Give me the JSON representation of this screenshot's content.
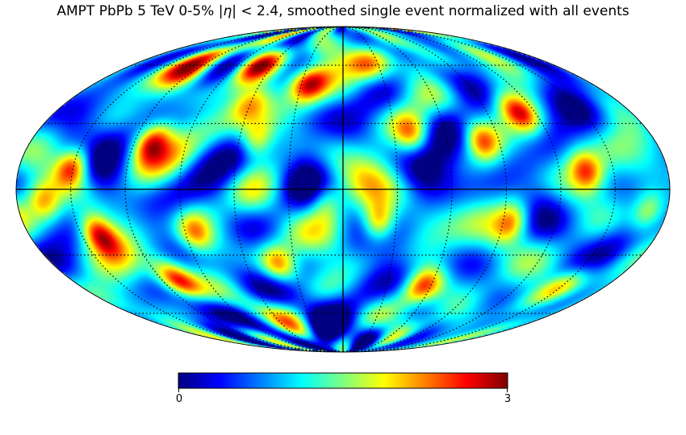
{
  "title": {
    "prefix": "AMPT PbPb 5 TeV 0-5% |",
    "symbol": "η",
    "suffix": "| < 2.4, smoothed single event normalized with all events"
  },
  "colorbar": {
    "min_label": "0",
    "max_label": "3",
    "colormap": "jet",
    "colors": [
      "#00007f",
      "#0000ff",
      "#007fff",
      "#00ffff",
      "#7fff7f",
      "#ffff00",
      "#ff7f00",
      "#ff0000",
      "#7f0000"
    ]
  },
  "chart_data": {
    "type": "heatmap",
    "projection": "mollweide",
    "value_range": [
      0,
      3
    ],
    "graticule": {
      "meridian_spacing_deg": 30,
      "parallel_spacing_deg": 30,
      "style": "dotted",
      "solid_lines": [
        "equator",
        "central-meridian"
      ]
    },
    "hotspots": [
      {
        "lon": -25,
        "lat": 50,
        "value": 2.9
      },
      {
        "lon": -50,
        "lat": 22,
        "value": 2.3
      },
      {
        "lon": -110,
        "lat": 22,
        "value": 2.4
      },
      {
        "lon": -150,
        "lat": 10,
        "value": 2.8
      },
      {
        "lon": 80,
        "lat": 22,
        "value": 2.4
      },
      {
        "lon": 110,
        "lat": 35,
        "value": 2.5
      },
      {
        "lon": -120,
        "lat": 55,
        "value": 2.2
      },
      {
        "lon": -70,
        "lat": 60,
        "value": 2.5
      },
      {
        "lon": 20,
        "lat": -15,
        "value": 2.7
      },
      {
        "lon": 40,
        "lat": 25,
        "value": 2.1
      },
      {
        "lon": -140,
        "lat": -20,
        "value": 2.6
      },
      {
        "lon": -110,
        "lat": -42,
        "value": 2.8
      },
      {
        "lon": -40,
        "lat": -35,
        "value": 2.4
      },
      {
        "lon": 55,
        "lat": -45,
        "value": 2.6
      },
      {
        "lon": 135,
        "lat": 8,
        "value": 2.3
      },
      {
        "lon": 170,
        "lat": -10,
        "value": 2.1
      },
      {
        "lon": -10,
        "lat": -5,
        "value": 2.0
      },
      {
        "lon": 95,
        "lat": -15,
        "value": 2.1
      },
      {
        "lon": -85,
        "lat": -20,
        "value": 2.1
      },
      {
        "lon": 150,
        "lat": -45,
        "value": 2.0
      },
      {
        "lon": 60,
        "lat": 60,
        "value": 1.9
      },
      {
        "lon": -165,
        "lat": -5,
        "value": 2.0
      },
      {
        "lon": 20,
        "lat": 60,
        "value": 1.8
      },
      {
        "lon": -60,
        "lat": 40,
        "value": 1.9
      }
    ],
    "coldspots": [
      {
        "lon": -20,
        "lat": 15,
        "value": 0.2
      },
      {
        "lon": 60,
        "lat": 25,
        "value": 0.1
      },
      {
        "lon": 45,
        "lat": 10,
        "value": 0.3
      },
      {
        "lon": -65,
        "lat": -5,
        "value": 0.2
      },
      {
        "lon": -25,
        "lat": -45,
        "value": 0.2
      },
      {
        "lon": 110,
        "lat": -5,
        "value": 0.3
      },
      {
        "lon": 150,
        "lat": 35,
        "value": 0.3
      },
      {
        "lon": -160,
        "lat": 30,
        "value": 0.3
      },
      {
        "lon": 30,
        "lat": -40,
        "value": 0.3
      },
      {
        "lon": -130,
        "lat": 5,
        "value": 0.4
      },
      {
        "lon": 0,
        "lat": -75,
        "value": 0.3
      },
      {
        "lon": 160,
        "lat": -30,
        "value": 0.3
      },
      {
        "lon": -100,
        "lat": -60,
        "value": 0.4
      },
      {
        "lon": 90,
        "lat": 50,
        "value": 0.4
      }
    ],
    "baseline_value": 1.0
  }
}
